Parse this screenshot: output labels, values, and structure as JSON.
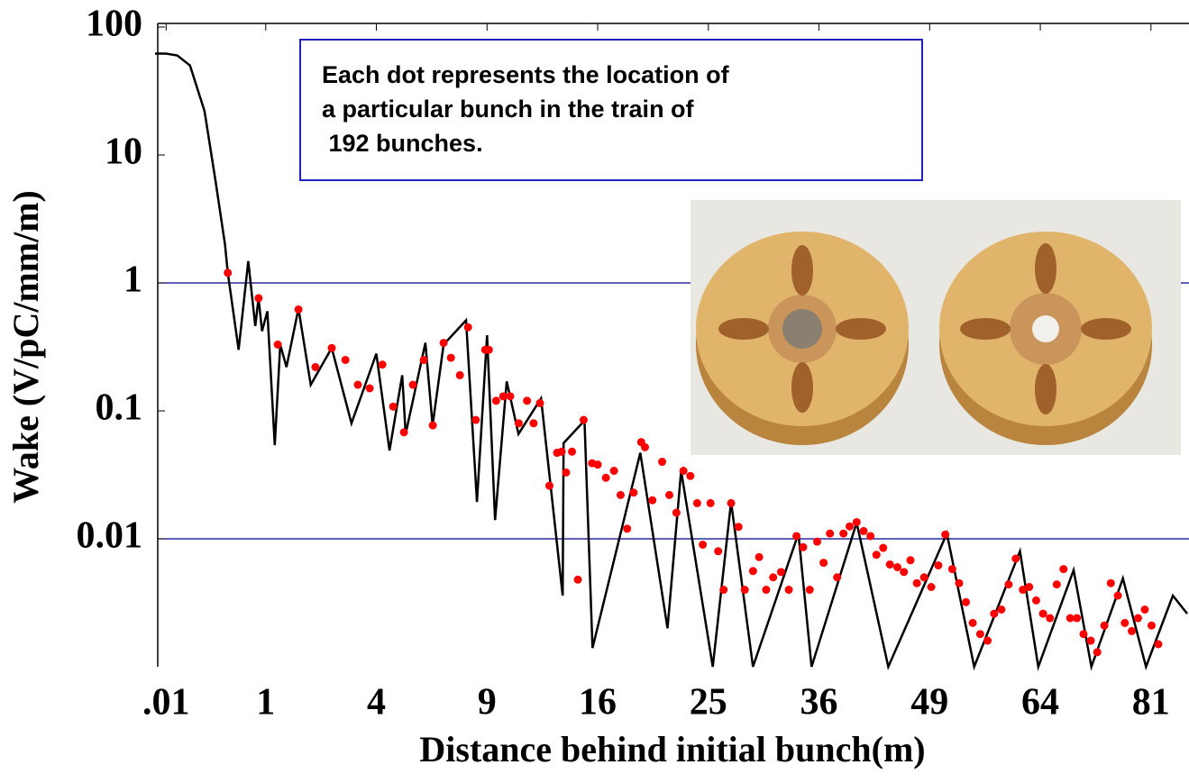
{
  "chart_data": {
    "type": "line",
    "xlabel": "Distance behind initial bunch(m)",
    "ylabel": "Wake (V/pC/mm/m)",
    "annotation": [
      "Each dot represents the location of",
      "a particular bunch in the train of",
      " 192 bunches."
    ],
    "xscale": "sqrt",
    "yscale": "log",
    "xlim": [
      0,
      87
    ],
    "ylim": [
      0.001,
      100
    ],
    "xticks": [
      {
        "value": 0.01,
        "label": ".01"
      },
      1,
      4,
      9,
      16,
      25,
      36,
      49,
      64,
      81
    ],
    "yticks": [
      0.01,
      0.1,
      1,
      10,
      100
    ],
    "hlines": [
      1,
      0.01
    ],
    "hline_color": "#00008b",
    "curve": {
      "color": "#000000",
      "x": [
        0,
        0.01,
        0.04,
        0.1,
        0.2,
        0.3,
        0.4,
        0.432,
        0.57,
        0.71,
        0.82,
        0.875,
        0.935,
        1.03,
        1.17,
        1.28,
        1.41,
        1.68,
        1.98,
        2.55,
        3.15,
        4.0,
        4.49,
        4.99,
        5.13,
        5.97,
        6.29,
        6.8,
        7.9,
        8.46,
        9.0,
        9.44,
        10.1,
        10.79,
        12.17,
        13.57,
        13.63,
        15.06,
        15.63,
        19.23,
        21.45,
        22.6,
        25.4,
        27.1,
        29.2,
        33.8,
        35.2,
        40.2,
        43.9,
        51.2,
        54.8,
        61.1,
        63.7,
        68.9,
        71.6,
        76.5,
        80.2,
        84.6,
        87
      ],
      "values": [
        62,
        62,
        60,
        50,
        22,
        6.2,
        2,
        1.2,
        0.3,
        1.48,
        0.46,
        0.76,
        0.42,
        0.6,
        0.054,
        0.33,
        0.22,
        0.63,
        0.16,
        0.31,
        0.08,
        0.28,
        0.049,
        0.19,
        0.066,
        0.34,
        0.077,
        0.33,
        0.51,
        0.0194,
        0.39,
        0.014,
        0.17,
        0.066,
        0.125,
        0.0036,
        0.056,
        0.084,
        0.0014,
        0.047,
        0.002,
        0.034,
        0.001,
        0.0194,
        0.001,
        0.011,
        0.001,
        0.0134,
        0.001,
        0.011,
        0.001,
        0.008,
        0.001,
        0.0057,
        0.001,
        0.0049,
        0.001,
        0.0036,
        0.0026
      ]
    },
    "points": {
      "color": "#ff0000",
      "x": [
        0.432,
        0.875,
        1.23,
        1.68,
        2.1,
        2.55,
        2.96,
        3.36,
        3.76,
        4.22,
        4.63,
        5.06,
        5.43,
        5.9,
        6.3,
        6.8,
        7.15,
        7.59,
        8.0,
        8.4,
        8.9,
        9.1,
        9.5,
        9.9,
        10.3,
        10.8,
        11.3,
        11.7,
        12.1,
        12.7,
        13.2,
        13.5,
        13.8,
        14.2,
        14.6,
        15.0,
        15.6,
        16.0,
        16.6,
        17.2,
        17.7,
        18.2,
        18.7,
        19.3,
        19.6,
        20.2,
        21.0,
        21.6,
        22.2,
        22.8,
        23.4,
        24.0,
        24.5,
        25.2,
        25.9,
        26.4,
        27.1,
        27.8,
        28.4,
        29.2,
        29.8,
        30.5,
        31.2,
        32.0,
        32.8,
        33.6,
        34.3,
        35.0,
        35.8,
        36.5,
        37.2,
        38.0,
        38.7,
        39.4,
        40.2,
        41.0,
        41.8,
        42.5,
        43.3,
        44.1,
        45.0,
        45.8,
        46.6,
        47.4,
        48.3,
        49.2,
        50.1,
        51.0,
        51.9,
        52.8,
        53.7,
        54.6,
        55.6,
        56.6,
        57.5,
        58.5,
        59.5,
        60.5,
        61.5,
        62.4,
        63.4,
        64.4,
        65.4,
        66.4,
        67.4,
        68.4,
        69.4,
        70.4,
        71.5,
        72.5,
        73.6,
        74.6,
        75.7,
        76.8,
        77.9,
        78.9,
        80.0,
        81.1,
        82.2
      ],
      "values": [
        1.2,
        0.76,
        0.33,
        0.62,
        0.22,
        0.31,
        0.25,
        0.16,
        0.15,
        0.23,
        0.108,
        0.068,
        0.16,
        0.25,
        0.077,
        0.34,
        0.26,
        0.19,
        0.45,
        0.085,
        0.3,
        0.3,
        0.12,
        0.13,
        0.13,
        0.08,
        0.12,
        0.08,
        0.115,
        0.026,
        0.047,
        0.048,
        0.033,
        0.048,
        0.0048,
        0.085,
        0.039,
        0.038,
        0.03,
        0.034,
        0.022,
        0.012,
        0.023,
        0.057,
        0.052,
        0.02,
        0.04,
        0.022,
        0.016,
        0.034,
        0.031,
        0.019,
        0.009,
        0.019,
        0.008,
        0.004,
        0.019,
        0.0124,
        0.004,
        0.0056,
        0.0072,
        0.004,
        0.005,
        0.0055,
        0.004,
        0.0105,
        0.0086,
        0.004,
        0.0095,
        0.0065,
        0.011,
        0.005,
        0.011,
        0.0125,
        0.0135,
        0.0115,
        0.0105,
        0.0075,
        0.0085,
        0.0063,
        0.006,
        0.0055,
        0.0068,
        0.0045,
        0.005,
        0.0042,
        0.0062,
        0.0108,
        0.0058,
        0.0045,
        0.0032,
        0.0022,
        0.0018,
        0.0016,
        0.0026,
        0.0028,
        0.0044,
        0.007,
        0.004,
        0.0042,
        0.0033,
        0.0026,
        0.0024,
        0.0044,
        0.0058,
        0.0024,
        0.0024,
        0.0018,
        0.0016,
        0.0013,
        0.0021,
        0.0045,
        0.0036,
        0.0022,
        0.0019,
        0.0024,
        0.0028,
        0.0021,
        0.0015
      ]
    }
  }
}
